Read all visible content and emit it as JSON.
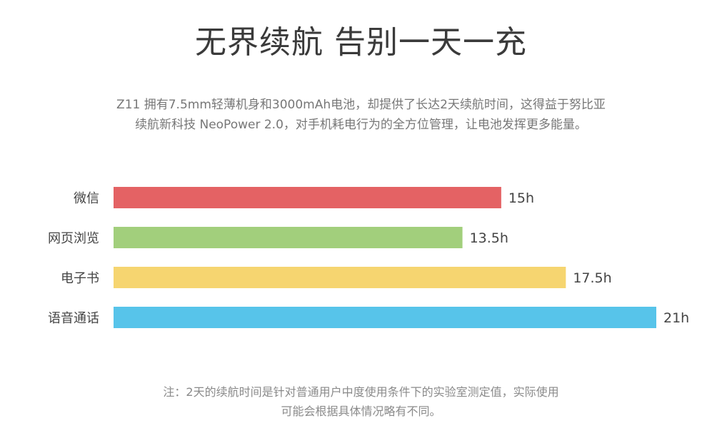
{
  "header": {
    "title": "无界续航 告别一天一充"
  },
  "description": {
    "line1": "Z11 拥有7.5mm轻薄机身和3000mAh电池，却提供了长达2天续航时间，这得益于努比亚",
    "line2": "续航新科技 NeoPower 2.0，对手机耗电行为的全方位管理，让电池发挥更多能量。"
  },
  "chart_data": {
    "type": "bar",
    "orientation": "horizontal",
    "categories": [
      "微信",
      "网页浏览",
      "电子书",
      "语音通话"
    ],
    "values": [
      15,
      13.5,
      17.5,
      21
    ],
    "value_labels": [
      "15h",
      "13.5h",
      "17.5h",
      "21h"
    ],
    "colors": [
      "#e46264",
      "#a2cf7c",
      "#f6d570",
      "#57c4ea"
    ],
    "title": "",
    "xlabel": "",
    "ylabel": "",
    "xlim": [
      0,
      21
    ],
    "grid": false,
    "legend": "none"
  },
  "footnote": {
    "line1": "注：2天的续航时间是针对普通用户中度使用条件下的实验室测定值，实际使用",
    "line2": "可能会根据具体情况略有不同。"
  }
}
